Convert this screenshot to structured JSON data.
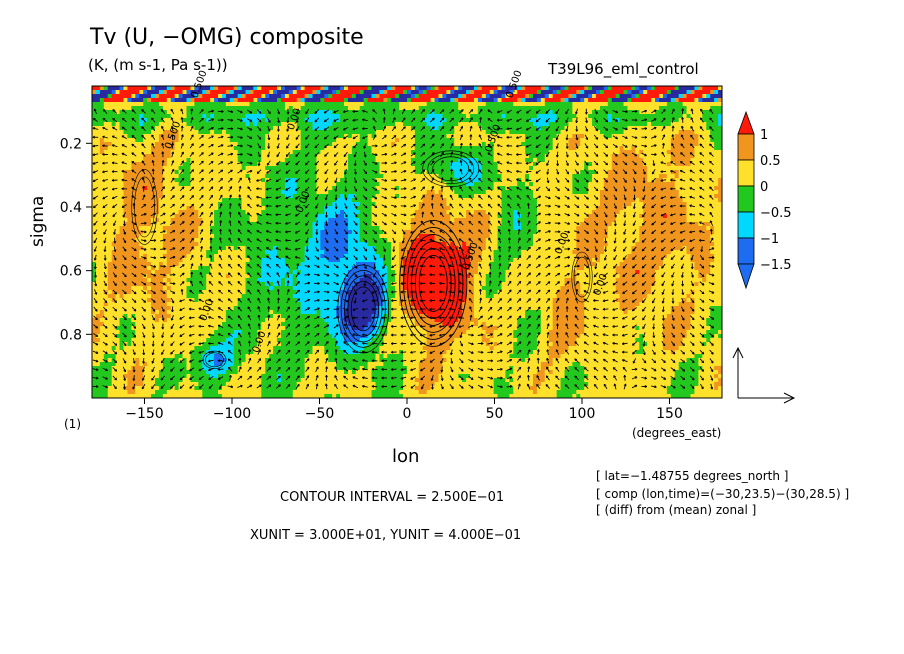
{
  "figure": {
    "title": "Tv (U, −OMG) composite",
    "units": "(K, (m s-1, Pa s-1))",
    "run_name": "T39L96_eml_control",
    "panel_label": "(1)",
    "contour_interval_text": "CONTOUR INTERVAL = 2.500E−01",
    "vector_units_text": "XUNIT = 3.000E+01, YUNIT = 4.000E−01",
    "info_lines": [
      "[ lat=−1.48755 degrees_north ]",
      "[ comp (lon,time)=(−30,23.5)−(30,28.5) ]",
      "[ (diff) from (mean) zonal ]"
    ]
  },
  "chart_data": {
    "type": "heatmap",
    "title": "Tv (U, −OMG) composite",
    "xlabel": "lon",
    "xunit_label": "(degrees_east)",
    "ylabel": "sigma",
    "xlim": [
      -180,
      180
    ],
    "ylim": [
      1.0,
      0.02
    ],
    "y_inverted": true,
    "grid": false,
    "x_ticks": [
      -150,
      -100,
      -50,
      0,
      50,
      100,
      150
    ],
    "x_tick_labels": [
      "−150",
      "−100",
      "−50",
      "0",
      "50",
      "100",
      "150"
    ],
    "y_ticks": [
      0.2,
      0.4,
      0.6,
      0.8
    ],
    "y_tick_labels": [
      "0.2",
      "0.4",
      "0.6",
      "0.8"
    ],
    "colorbar": {
      "levels": [
        -1.5,
        -1,
        -0.5,
        0,
        0.5,
        1
      ],
      "labels": [
        "−1.5",
        "−1",
        "−0.5",
        "0",
        "0.5",
        "1"
      ],
      "colors": [
        "#1e6cf0",
        "#00d8ff",
        "#22c81e",
        "#ffe12b",
        "#f0961e",
        "#ff1a0a"
      ],
      "extend": "both"
    },
    "contour_labels": [
      {
        "text": "0.500",
        "lon": -135,
        "sigma": 0.22
      },
      {
        "text": "0.00",
        "lon": -115,
        "sigma": 0.76
      },
      {
        "text": "0.00",
        "lon": -60,
        "sigma": 0.42
      },
      {
        "text": "0.00",
        "lon": -85,
        "sigma": 0.86
      },
      {
        "text": "0.00",
        "lon": -65,
        "sigma": 0.16
      },
      {
        "text": "0.500",
        "lon": 48,
        "sigma": 0.23
      },
      {
        "text": "0.500",
        "lon": 35,
        "sigma": 0.6
      },
      {
        "text": "0.00",
        "lon": 88,
        "sigma": 0.55
      },
      {
        "text": "0.00",
        "lon": 110,
        "sigma": 0.68
      },
      {
        "text": "0.500",
        "lon": -120,
        "sigma": 0.06
      },
      {
        "text": "0.500",
        "lon": 60,
        "sigma": 0.06
      }
    ],
    "features": [
      {
        "name": "warm-anomaly-core",
        "lon": 15,
        "sigma": 0.66,
        "value": 1.25
      },
      {
        "name": "cold-anomaly-core",
        "lon": -25,
        "sigma": 0.72,
        "value": -1.5
      },
      {
        "name": "upper-cold-anomaly",
        "lon": 25,
        "sigma": 0.28,
        "value": -1.0
      },
      {
        "name": "west-cold-anomaly",
        "lon": -110,
        "sigma": 0.88,
        "value": -1.0
      }
    ],
    "vector_reference": {
      "xunit": 30.0,
      "yunit": 0.4
    }
  }
}
